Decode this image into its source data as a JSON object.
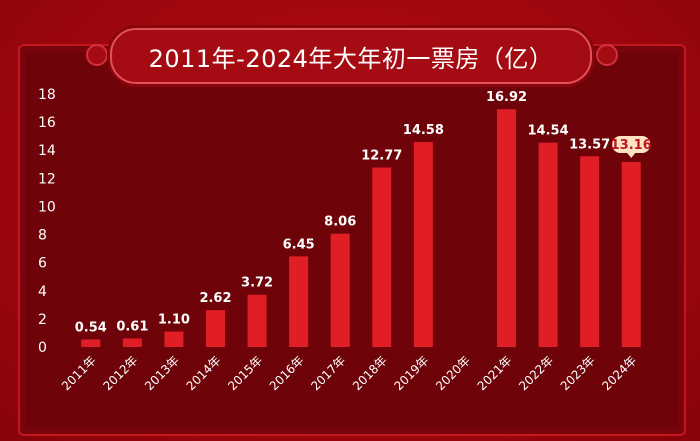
{
  "header": {
    "title": "2011年-2024年大年初一票房（亿）"
  },
  "colors": {
    "bar": "#e11d25",
    "highlight_bg": "#fde3c4",
    "highlight_text": "#c0151c"
  },
  "chart_data": {
    "type": "bar",
    "title": "2011年-2024年大年初一票房（亿）",
    "xlabel": "",
    "ylabel": "",
    "ylim": [
      0,
      18
    ],
    "yticks": [
      0,
      2,
      4,
      6,
      8,
      10,
      12,
      14,
      16,
      18
    ],
    "categories": [
      "2011年",
      "2012年",
      "2013年",
      "2014年",
      "2015年",
      "2016年",
      "2017年",
      "2018年",
      "2019年",
      "2020年",
      "2021年",
      "2022年",
      "2023年",
      "2024年"
    ],
    "values": [
      0.54,
      0.61,
      1.1,
      2.62,
      3.72,
      6.45,
      8.06,
      12.77,
      14.58,
      null,
      16.92,
      14.54,
      13.57,
      13.16
    ],
    "labels": [
      "0.54",
      "0.61",
      "1.10",
      "2.62",
      "3.72",
      "6.45",
      "8.06",
      "12.77",
      "14.58",
      "",
      "16.92",
      "14.54",
      "13.57",
      "13.16"
    ],
    "highlight_index": 13,
    "grid": false,
    "legend": "none"
  }
}
